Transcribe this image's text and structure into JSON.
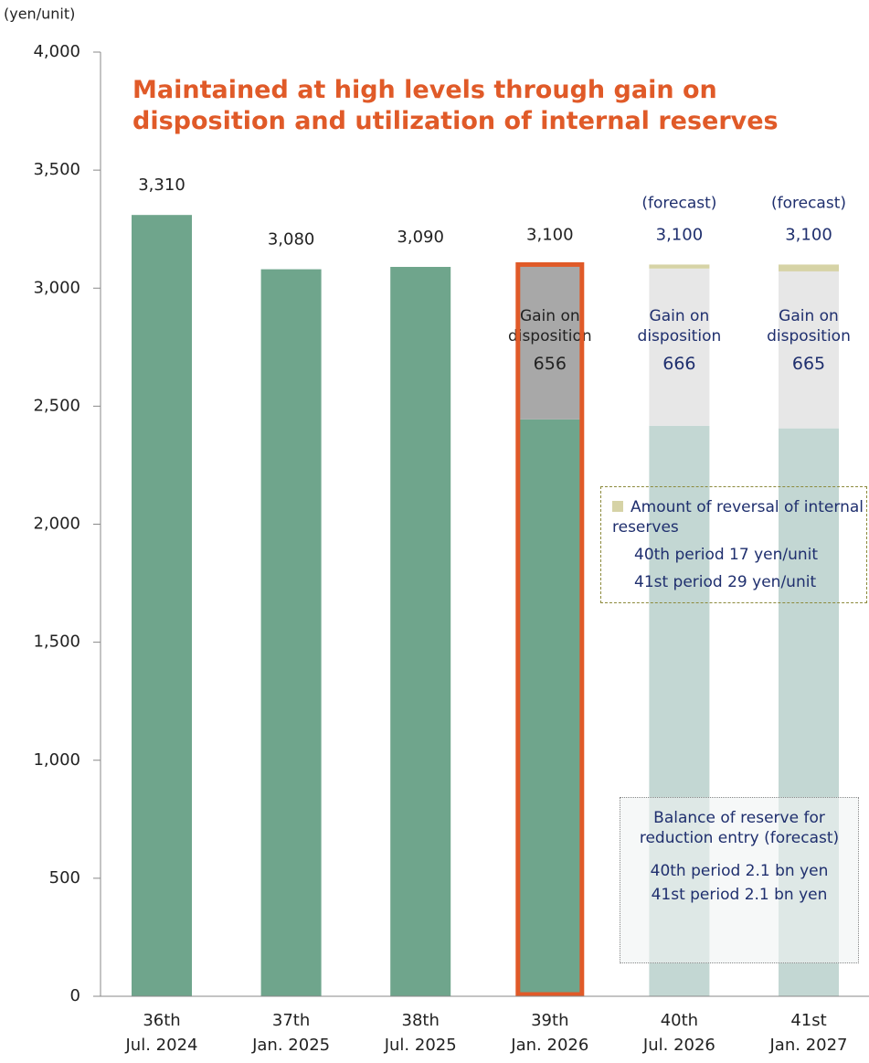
{
  "chart_data": {
    "type": "stacked_bar",
    "title": "Maintained at high levels through gain on disposition and utilization of internal reserves",
    "y_unit": "(yen/unit)",
    "categories": [
      "36th",
      "37th",
      "38th",
      "39th",
      "40th",
      "41st"
    ],
    "subcategories": [
      "Jul. 2024",
      "Jan. 2025",
      "Jul. 2025",
      "Jan. 2026",
      "Jul. 2026",
      "Jan. 2027"
    ],
    "series": [
      {
        "colors": [
          "#6fa58c",
          "#6fa58c",
          "#6fa58c",
          "#6fa58c",
          "#c3d7d3",
          "#c3d7d3"
        ],
        "values": [
          3310,
          3080,
          3090,
          2444,
          2417,
          2406
        ]
      },
      {
        "name": "Gain on disposition",
        "colors": [
          null,
          null,
          null,
          "#a8a8a8",
          "#e7e7e7",
          "#e7e7e7"
        ],
        "values": [
          null,
          null,
          null,
          656,
          666,
          665
        ]
      },
      {
        "name": "Amount of reversal of internal reserves",
        "color": "#d6d3a6",
        "values": [
          null,
          null,
          null,
          null,
          17,
          29
        ]
      }
    ],
    "totals": {
      "values": [
        3310,
        3080,
        3090,
        3100,
        3100,
        3100
      ],
      "value_labels": [
        "3,310",
        "3,080",
        "3,090",
        "3,100",
        "3,100",
        "3,100"
      ]
    },
    "forecast_labels": [
      null,
      null,
      null,
      null,
      "(forecast)",
      "(forecast)"
    ],
    "label_colors": [
      "#222222",
      "#222222",
      "#222222",
      "#222222",
      "#1f2f6e",
      "#1f2f6e"
    ],
    "highlight": {
      "index": 3,
      "color": "#e05a28"
    },
    "title_color": "#e05a28",
    "ylim": [
      0,
      4000
    ],
    "yticks": [
      {
        "value": 0,
        "label": "0"
      },
      {
        "value": 500,
        "label": "500"
      },
      {
        "value": 1000,
        "label": "1,000"
      },
      {
        "value": 1500,
        "label": "1,500"
      },
      {
        "value": 2000,
        "label": "2,000"
      },
      {
        "value": 2500,
        "label": "2,500"
      },
      {
        "value": 3000,
        "label": "3,000"
      },
      {
        "value": 3500,
        "label": "3,500"
      },
      {
        "value": 4000,
        "label": "4,000"
      }
    ],
    "annotations": [
      {
        "lines": [
          "40th period 17 yen/unit",
          "41st period 29 yen/unit"
        ]
      },
      {
        "title": "Balance of reserve for reduction entry (forecast)",
        "lines": [
          "40th period 2.1 bn yen",
          "41st period 2.1 bn yen"
        ]
      }
    ]
  }
}
